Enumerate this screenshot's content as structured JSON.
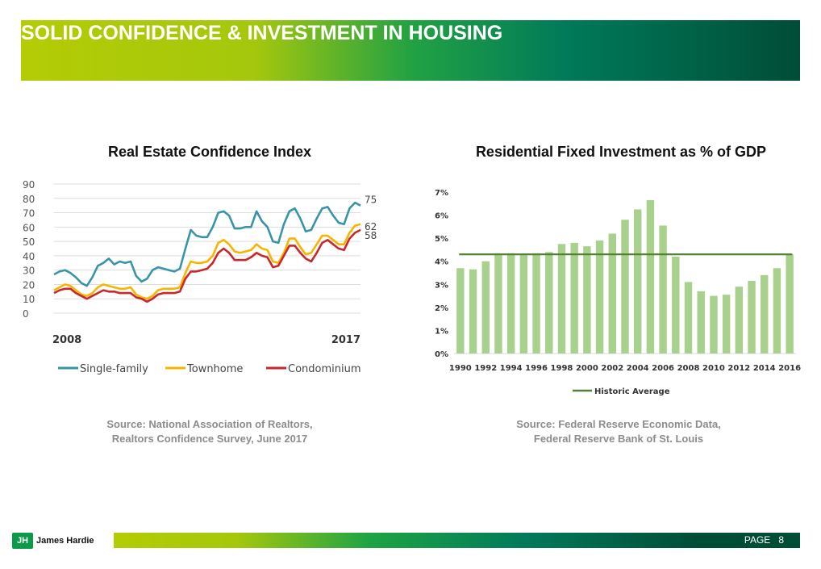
{
  "header": {
    "title": "SOLID CONFIDENCE & INVESTMENT IN HOUSING"
  },
  "left_source": {
    "line1": "Source: National Association of Realtors,",
    "line2": "Realtors Confidence Survey, June 2017"
  },
  "right_source": {
    "line1": "Source: Federal Reserve Economic Data,",
    "line2": "Federal Reserve Bank of St. Louis"
  },
  "footer": {
    "brand": "James Hardie",
    "logo_mark": "JH",
    "page_label": "PAGE",
    "page_number": "8"
  },
  "chart_data": [
    {
      "type": "line",
      "title": "Real Estate Confidence Index",
      "ylim": [
        0,
        90
      ],
      "yticks": [
        "0",
        "10",
        "20",
        "30",
        "40",
        "50",
        "60",
        "70",
        "80",
        "90"
      ],
      "x_start_label": "2008",
      "x_end_label": "2017",
      "grid": true,
      "legend_position": "bottom",
      "series": [
        {
          "name": "Single-family",
          "color": "#3a94a8",
          "end_label": "75",
          "values": [
            27,
            29,
            30,
            28,
            25,
            21,
            19,
            25,
            33,
            35,
            38,
            34,
            36,
            35,
            36,
            26,
            22,
            24,
            30,
            32,
            31,
            30,
            29,
            31,
            45,
            58,
            54,
            53,
            53,
            60,
            70,
            71,
            68,
            59,
            59,
            60,
            60,
            71,
            64,
            60,
            50,
            49,
            62,
            71,
            73,
            66,
            57,
            58,
            66,
            73,
            74,
            68,
            63,
            62,
            73,
            77,
            75
          ]
        },
        {
          "name": "Townhome",
          "color": "#f7b500",
          "end_label": "62",
          "values": [
            16,
            18,
            20,
            19,
            16,
            13,
            12,
            14,
            18,
            20,
            19,
            18,
            17,
            17,
            18,
            13,
            11,
            10,
            12,
            16,
            17,
            17,
            17,
            18,
            28,
            36,
            35,
            35,
            36,
            40,
            49,
            51,
            48,
            43,
            42,
            43,
            44,
            48,
            45,
            44,
            36,
            35,
            42,
            52,
            52,
            46,
            41,
            42,
            48,
            54,
            54,
            51,
            48,
            48,
            56,
            61,
            62
          ]
        },
        {
          "name": "Condominium",
          "color": "#c8282d",
          "end_label": "58",
          "values": [
            14,
            16,
            17,
            17,
            14,
            12,
            10,
            12,
            14,
            16,
            15,
            15,
            14,
            14,
            14,
            11,
            10,
            8,
            10,
            13,
            14,
            14,
            14,
            15,
            24,
            29,
            29,
            30,
            31,
            35,
            42,
            45,
            42,
            37,
            37,
            37,
            39,
            42,
            40,
            39,
            32,
            33,
            40,
            47,
            47,
            42,
            38,
            36,
            42,
            49,
            51,
            48,
            45,
            44,
            52,
            56,
            58
          ]
        }
      ]
    },
    {
      "type": "bar",
      "title": "Residential Fixed Investment as % of GDP",
      "ylim": [
        0,
        7
      ],
      "yticks": [
        "0%",
        "1%",
        "2%",
        "3%",
        "4%",
        "5%",
        "6%",
        "7%"
      ],
      "categories": [
        1990,
        1991,
        1992,
        1993,
        1994,
        1995,
        1996,
        1997,
        1998,
        1999,
        2000,
        2001,
        2002,
        2003,
        2004,
        2005,
        2006,
        2007,
        2008,
        2009,
        2010,
        2011,
        2012,
        2013,
        2014,
        2015,
        2016
      ],
      "xtick_labels": [
        "1990",
        "1992",
        "1994",
        "1996",
        "1998",
        "2000",
        "2002",
        "2004",
        "2006",
        "2008",
        "2010",
        "2012",
        "2014",
        "2016"
      ],
      "values": [
        3.7,
        3.65,
        4.0,
        4.35,
        4.35,
        4.3,
        4.35,
        4.4,
        4.75,
        4.8,
        4.65,
        4.9,
        5.2,
        5.8,
        6.25,
        6.65,
        5.55,
        4.2,
        3.1,
        2.7,
        2.5,
        2.55,
        2.9,
        3.15,
        3.4,
        3.7,
        4.3
      ],
      "bar_color": "#a9d18e",
      "reference_line": {
        "name": "Historic Average",
        "value": 4.3,
        "color": "#548235"
      },
      "legend_position": "bottom"
    }
  ]
}
